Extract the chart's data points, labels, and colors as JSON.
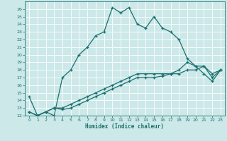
{
  "xlabel": "Humidex (Indice chaleur)",
  "bg_color": "#cce8e8",
  "grid_color": "#ffffff",
  "line_color": "#1a7070",
  "xlim": [
    -0.5,
    23.5
  ],
  "ylim": [
    12,
    27
  ],
  "xticks": [
    0,
    1,
    2,
    3,
    4,
    5,
    6,
    7,
    8,
    9,
    10,
    11,
    12,
    13,
    14,
    15,
    16,
    17,
    18,
    19,
    20,
    21,
    22,
    23
  ],
  "yticks": [
    12,
    13,
    14,
    15,
    16,
    17,
    18,
    19,
    20,
    21,
    22,
    23,
    24,
    25,
    26
  ],
  "series1_x": [
    0,
    1,
    2,
    3,
    4,
    5,
    6,
    7,
    8,
    9,
    10,
    11,
    12,
    13,
    14,
    15,
    16,
    17,
    18,
    19,
    20,
    21,
    22,
    23
  ],
  "series1_y": [
    14.5,
    12.0,
    12.5,
    12.0,
    17.0,
    18.0,
    20.0,
    21.0,
    22.5,
    23.0,
    26.2,
    25.5,
    26.2,
    24.0,
    23.5,
    25.0,
    23.5,
    23.0,
    22.0,
    19.5,
    18.5,
    17.5,
    16.5,
    18.0
  ],
  "series2_x": [
    0,
    1,
    2,
    3,
    4,
    5,
    6,
    7,
    8,
    9,
    10,
    11,
    12,
    13,
    14,
    15,
    16,
    17,
    18,
    19,
    20,
    21,
    22,
    23
  ],
  "series2_y": [
    12.5,
    12.0,
    12.5,
    13.0,
    13.0,
    13.5,
    14.0,
    14.5,
    15.0,
    15.5,
    16.0,
    16.5,
    17.0,
    17.5,
    17.5,
    17.5,
    17.5,
    17.5,
    18.0,
    19.0,
    18.5,
    18.5,
    17.5,
    18.0
  ],
  "series3_x": [
    0,
    1,
    2,
    3,
    4,
    5,
    6,
    7,
    8,
    9,
    10,
    11,
    12,
    13,
    14,
    15,
    16,
    17,
    18,
    19,
    20,
    21,
    22,
    23
  ],
  "series3_y": [
    12.5,
    12.0,
    12.5,
    13.0,
    12.8,
    13.0,
    13.5,
    14.0,
    14.5,
    15.0,
    15.5,
    16.0,
    16.5,
    17.0,
    17.0,
    17.0,
    17.2,
    17.5,
    17.5,
    18.0,
    18.0,
    18.5,
    17.0,
    18.0
  ]
}
